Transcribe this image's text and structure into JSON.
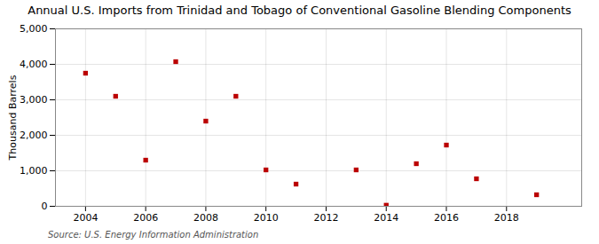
{
  "chart_data": {
    "type": "scatter",
    "title": "Annual U.S. Imports from Trinidad and Tobago of Conventional Gasoline Blending Components",
    "ylabel": "Thousand Barrels",
    "annotations": [
      "Source: U.S. Energy Information Administration"
    ],
    "x": [
      2004,
      2005,
      2006,
      2007,
      2008,
      2009,
      2010,
      2011,
      2013,
      2014,
      2015,
      2016,
      2017,
      2019
    ],
    "values": [
      3750,
      3100,
      1300,
      4075,
      2400,
      3100,
      1025,
      625,
      1025,
      30,
      1200,
      1725,
      775,
      325
    ],
    "color": "#bb0000",
    "marker": "square",
    "xlim": [
      2003.0,
      2020.5
    ],
    "xticks": [
      2004,
      2006,
      2008,
      2010,
      2012,
      2014,
      2016,
      2018
    ],
    "ylim": [
      0,
      5000
    ],
    "yticks": [
      0,
      {
        "value": 1000,
        "label": "1,000"
      },
      {
        "value": 2000,
        "label": "2,000"
      },
      {
        "value": 3000,
        "label": "3,000"
      },
      {
        "value": 4000,
        "label": "4,000"
      },
      {
        "value": 5000,
        "label": "5,000"
      }
    ],
    "grid": true
  }
}
